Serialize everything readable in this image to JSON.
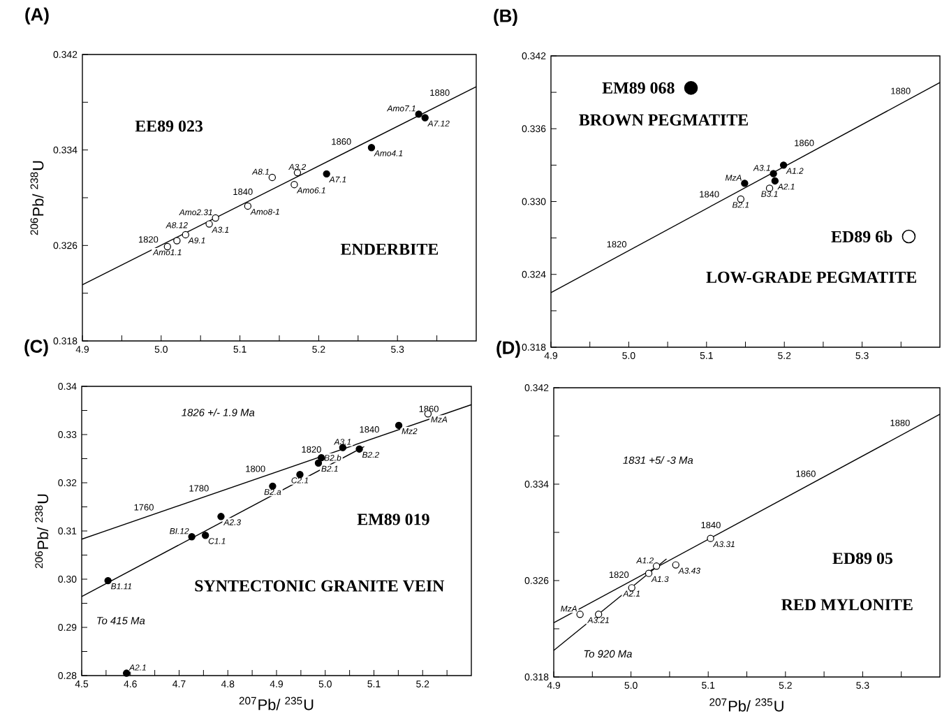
{
  "chart_data": [
    {
      "type": "scatter",
      "title": "(A)",
      "ylabel": "$^{206}$Pb/ $^{238}$U",
      "xlim": [
        4.9,
        5.4
      ],
      "ylim": [
        0.318,
        0.342
      ],
      "xticks": [
        4.9,
        {
          "value": 4.95,
          "label": null
        },
        {
          "value": 5.0,
          "label": "5.0"
        },
        {
          "value": 5.05,
          "label": null
        },
        5.1,
        {
          "value": 5.15,
          "label": null
        },
        5.2,
        {
          "value": 5.25,
          "label": null
        },
        5.3,
        {
          "value": 5.35,
          "label": null
        }
      ],
      "yticks": [
        0.318,
        {
          "value": 0.322,
          "label": null
        },
        0.326,
        {
          "value": 0.33,
          "label": null
        },
        0.334,
        {
          "value": 0.338,
          "label": null
        },
        0.342
      ],
      "series": [
        {
          "type": "line",
          "color": "#000000",
          "x": [
            4.9,
            5.4
          ],
          "values": [
            0.3227,
            0.3393
          ]
        },
        {
          "marker": "circle",
          "color": "#ffffff",
          "x": [
            5.008,
            5.02,
            5.031,
            5.069,
            5.061,
            5.11,
            5.141,
            5.173,
            5.169
          ],
          "values": [
            0.3259,
            0.3264,
            0.3269,
            0.3283,
            0.3278,
            0.3293,
            0.3317,
            0.3321,
            0.3311
          ]
        },
        {
          "marker": "circle",
          "color": "#000000",
          "x": [
            5.21,
            5.267,
            5.327,
            5.335
          ],
          "values": [
            0.332,
            0.3342,
            0.337,
            0.3367
          ]
        }
      ],
      "annotations": [
        {
          "text": "1820",
          "x": 5.0,
          "y": 0.326
        },
        {
          "text": "1840",
          "x": 5.12,
          "y": 0.33
        },
        {
          "text": "1860",
          "x": 5.245,
          "y": 0.3342
        },
        {
          "text": "1880",
          "x": 5.37,
          "y": 0.3383
        },
        {
          "text": "Amo1.1",
          "x": 5.008,
          "y": 0.3259
        },
        {
          "text": "A8.12",
          "x": 5.02,
          "y": 0.3264
        },
        {
          "text": "A9.1",
          "x": 5.031,
          "y": 0.3269
        },
        {
          "text": "Amo2.31",
          "x": 5.069,
          "y": 0.3283
        },
        {
          "text": "A3.1",
          "x": 5.061,
          "y": 0.3278
        },
        {
          "text": "Amo8-1",
          "x": 5.11,
          "y": 0.3293
        },
        {
          "text": "A8.1",
          "x": 5.141,
          "y": 0.3317
        },
        {
          "text": "A3.2",
          "x": 5.173,
          "y": 0.3321
        },
        {
          "text": "Amo6.1",
          "x": 5.169,
          "y": 0.3311
        },
        {
          "text": "A7.1",
          "x": 5.21,
          "y": 0.332
        },
        {
          "text": "Amo4.1",
          "x": 5.267,
          "y": 0.3342
        },
        {
          "text": "Amo7.1",
          "x": 5.327,
          "y": 0.337
        },
        {
          "text": "A7.12",
          "x": 5.335,
          "y": 0.3367
        },
        "EE89 023",
        "ENDERBITE"
      ]
    },
    {
      "type": "scatter",
      "title": "(B)",
      "legend": "top left",
      "xlim": [
        4.9,
        5.4
      ],
      "ylim": [
        0.318,
        0.342
      ],
      "xticks": [
        4.9,
        {
          "value": 4.95,
          "label": null
        },
        {
          "value": 5.0,
          "label": "5.0"
        },
        {
          "value": 5.05,
          "label": null
        },
        5.1,
        {
          "value": 5.15,
          "label": null
        },
        5.2,
        {
          "value": 5.25,
          "label": null
        },
        5.3,
        {
          "value": 5.35,
          "label": null
        }
      ],
      "yticks": [
        0.318,
        {
          "value": 0.321,
          "label": null
        },
        0.324,
        {
          "value": 0.327,
          "label": null
        },
        {
          "value": 0.33,
          "label": "0.330"
        },
        {
          "value": 0.333,
          "label": null
        },
        0.336,
        {
          "value": 0.339,
          "label": null
        },
        0.342
      ],
      "series": [
        {
          "type": "line",
          "color": "#000000",
          "x": [
            4.9,
            5.4
          ],
          "values": [
            0.3225,
            0.3398
          ]
        },
        {
          "name": "EM89 068",
          "marker": "circle",
          "color": "#000000",
          "x": [
            5.149,
            5.186,
            5.199,
            5.188
          ],
          "values": [
            0.3315,
            0.3323,
            0.333,
            0.3317
          ]
        },
        {
          "name": "ED89 6b",
          "marker": "circle",
          "color": "#ffffff",
          "x": [
            5.144,
            5.181
          ],
          "values": [
            0.3302,
            0.3311
          ]
        }
      ],
      "annotations": [
        {
          "text": "1820",
          "x": 5.001,
          "y": 0.32599
        },
        {
          "text": "1840",
          "x": 5.12,
          "y": 0.33011
        },
        {
          "text": "1860",
          "x": 5.242,
          "y": 0.33433
        },
        {
          "text": "1880",
          "x": 5.366,
          "y": 0.33862
        },
        {
          "text": "MzA",
          "x": 5.149,
          "y": 0.3315
        },
        {
          "text": "B2.1",
          "x": 5.144,
          "y": 0.3302
        },
        {
          "text": "A3.1",
          "x": 5.186,
          "y": 0.3323
        },
        {
          "text": "A1.2",
          "x": 5.199,
          "y": 0.333
        },
        {
          "text": "A2.1",
          "x": 5.188,
          "y": 0.3317
        },
        {
          "text": "B3.1",
          "x": 5.181,
          "y": 0.3311
        },
        "BROWN PEGMATITE",
        "LOW-GRADE PEGMATITE"
      ]
    },
    {
      "type": "scatter",
      "title": "(C)",
      "xlabel": "$^{207}$Pb/ $^{235}$U",
      "ylabel": "$^{206}$Pb/ $^{238}$U",
      "xlim": [
        4.5,
        5.3
      ],
      "ylim": [
        0.28,
        0.34
      ],
      "xticks": [
        4.5,
        {
          "value": 4.55,
          "label": null
        },
        4.6,
        {
          "value": 4.65,
          "label": null
        },
        4.7,
        {
          "value": 4.75,
          "label": null
        },
        4.8,
        {
          "value": 4.85,
          "label": null
        },
        4.9,
        {
          "value": 4.95,
          "label": null
        },
        {
          "value": 5.0,
          "label": "5.0"
        },
        {
          "value": 5.05,
          "label": null
        },
        5.1,
        {
          "value": 5.15,
          "label": null
        },
        5.2,
        {
          "value": 5.25,
          "label": null
        }
      ],
      "yticks": [
        0.28,
        {
          "value": 0.285,
          "label": null
        },
        0.29,
        {
          "value": 0.295,
          "label": null
        },
        {
          "value": 0.3,
          "label": "0.30"
        },
        {
          "value": 0.305,
          "label": null
        },
        0.31,
        {
          "value": 0.315,
          "label": null
        },
        0.32,
        {
          "value": 0.325,
          "label": null
        },
        0.33,
        {
          "value": 0.335,
          "label": null
        },
        0.34
      ],
      "series": [
        {
          "type": "line",
          "color": "#000000",
          "x": [
            4.5,
            5.3
          ],
          "values": [
            0.3083,
            0.3362
          ]
        },
        {
          "type": "line",
          "color": "#000000",
          "x": [
            4.5,
            5.08
          ],
          "values": [
            0.2964,
            0.3275
          ]
        },
        {
          "marker": "circle",
          "color": "#000000",
          "x": [
            4.592,
            4.554,
            4.726,
            4.754,
            4.786,
            4.892,
            4.948,
            4.986,
            4.992,
            5.036,
            5.07,
            5.151
          ],
          "values": [
            0.2805,
            0.2997,
            0.3088,
            0.3091,
            0.313,
            0.3193,
            0.3217,
            0.3241,
            0.3252,
            0.3273,
            0.327,
            0.3319
          ]
        },
        {
          "marker": "circle",
          "color": "#ffffff",
          "x": [
            5.211
          ],
          "values": [
            0.3343
          ]
        }
      ],
      "annotations": [
        {
          "text": "1760",
          "x": 4.654,
          "y": 0.31367
        },
        {
          "text": "1780",
          "x": 4.767,
          "y": 0.31761
        },
        {
          "text": "1800",
          "x": 4.883,
          "y": 0.32166
        },
        {
          "text": "1820",
          "x": 4.998,
          "y": 0.32567
        },
        {
          "text": "1840",
          "x": 5.117,
          "y": 0.32982
        },
        {
          "text": "1860",
          "x": 5.239,
          "y": 0.33408
        },
        {
          "text": "A2.1",
          "x": 4.592,
          "y": 0.2805
        },
        {
          "text": "B1.11",
          "x": 4.554,
          "y": 0.2997
        },
        {
          "text": "BI.12",
          "x": 4.726,
          "y": 0.3088
        },
        {
          "text": "C1.1",
          "x": 4.754,
          "y": 0.3091
        },
        {
          "text": "A2.3",
          "x": 4.786,
          "y": 0.313
        },
        {
          "text": "B2.a",
          "x": 4.892,
          "y": 0.3193
        },
        {
          "text": "C2.1",
          "x": 4.948,
          "y": 0.3217
        },
        {
          "text": "B2.1",
          "x": 4.986,
          "y": 0.3241
        },
        {
          "text": "B2.b",
          "x": 4.992,
          "y": 0.3252
        },
        {
          "text": "A3.1",
          "x": 5.036,
          "y": 0.3273
        },
        {
          "text": "B2.2",
          "x": 5.07,
          "y": 0.327
        },
        {
          "text": "Mz2",
          "x": 5.151,
          "y": 0.3319
        },
        {
          "text": "MzA",
          "x": 5.211,
          "y": 0.3343
        },
        "1826 +/- 1.9 Ma",
        "EM89 019",
        "SYNTECTONIC GRANITE VEIN",
        "To 415 Ma"
      ]
    },
    {
      "type": "scatter",
      "title": "(D)",
      "xlabel": "$^{207}$Pb/ $^{235}$U",
      "xlim": [
        4.9,
        5.4
      ],
      "ylim": [
        0.318,
        0.342
      ],
      "xticks": [
        4.9,
        {
          "value": 4.95,
          "label": null
        },
        {
          "value": 5.0,
          "label": "5.0"
        },
        {
          "value": 5.05,
          "label": null
        },
        5.1,
        {
          "value": 5.15,
          "label": null
        },
        5.2,
        {
          "value": 5.25,
          "label": null
        },
        5.3,
        {
          "value": 5.35,
          "label": null
        }
      ],
      "yticks": [
        0.318,
        {
          "value": 0.322,
          "label": null
        },
        0.326,
        {
          "value": 0.33,
          "label": null
        },
        0.334,
        {
          "value": 0.338,
          "label": null
        },
        0.342
      ],
      "series": [
        {
          "type": "line",
          "color": "#000000",
          "x": [
            4.9,
            5.4
          ],
          "values": [
            0.3225,
            0.3398
          ]
        },
        {
          "type": "line",
          "color": "#000000",
          "x": [
            4.9,
            5.046
          ],
          "values": [
            0.3202,
            0.3278
          ]
        },
        {
          "marker": "circle",
          "color": "#ffffff",
          "x": [
            4.934,
            4.958,
            5.001,
            5.023,
            5.033,
            5.058,
            5.103
          ],
          "values": [
            0.3232,
            0.3232,
            0.3254,
            0.3266,
            0.3272,
            0.3273,
            0.3295
          ]
        }
      ],
      "annotations": [
        {
          "text": "1820",
          "x": 5.001,
          "y": 0.32599
        },
        {
          "text": "1840",
          "x": 5.12,
          "y": 0.33011
        },
        {
          "text": "1860",
          "x": 5.243,
          "y": 0.33437
        },
        {
          "text": "1880",
          "x": 5.365,
          "y": 0.33859
        },
        {
          "text": "MzA",
          "x": 4.934,
          "y": 0.3232
        },
        {
          "text": "A3.21",
          "x": 4.958,
          "y": 0.3232
        },
        {
          "text": "A2.1",
          "x": 5.001,
          "y": 0.3254
        },
        {
          "text": "A1.3",
          "x": 5.023,
          "y": 0.3266
        },
        {
          "text": "A1.2",
          "x": 5.033,
          "y": 0.3272
        },
        {
          "text": "A3.43",
          "x": 5.058,
          "y": 0.3273
        },
        {
          "text": "A3.31",
          "x": 5.103,
          "y": 0.3295
        },
        "1831 +5/ -3 Ma",
        "ED89 05",
        "RED MYLONITE",
        "To 920 Ma"
      ]
    }
  ]
}
